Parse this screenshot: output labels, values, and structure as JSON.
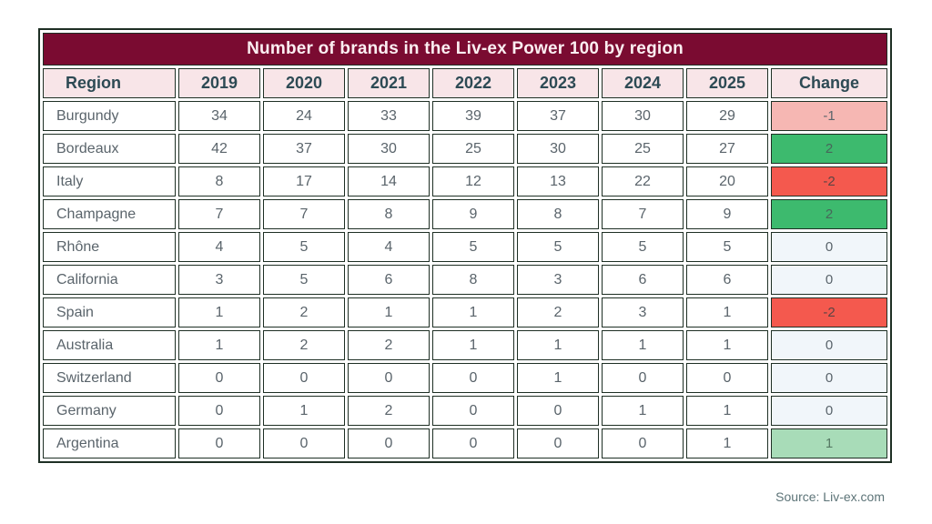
{
  "title": "Number of brands in the Liv-ex Power 100 by region",
  "source_note": "Source: Liv-ex.com",
  "colors": {
    "title_bg": "#7a0b31",
    "title_text": "#fbeef1",
    "header_bg": "#f8e5e8",
    "header_text": "#2d4a54",
    "border_color": "#1e2f24",
    "body_text": "#5a646b",
    "neg_light": "#f6b7b3",
    "pos_strong": "#3dba6e",
    "neg_strong": "#f4594e",
    "zero_bg": "#f1f6fa",
    "pos_light": "#a8dcb8",
    "source_text": "#5d7478"
  },
  "chart_data": {
    "type": "table",
    "title": "Number of brands in the Liv-ex Power 100 by region",
    "columns": [
      "Region",
      "2019",
      "2020",
      "2021",
      "2022",
      "2023",
      "2024",
      "2025",
      "Change"
    ],
    "categories": [
      "2019",
      "2020",
      "2021",
      "2022",
      "2023",
      "2024",
      "2025"
    ],
    "rows": [
      {
        "region": "Burgundy",
        "values": [
          34,
          24,
          33,
          39,
          37,
          30,
          29
        ],
        "change": "-1",
        "change_style": "neg-light"
      },
      {
        "region": "Bordeaux",
        "values": [
          42,
          37,
          30,
          25,
          30,
          25,
          27
        ],
        "change": "2",
        "change_style": "pos-strong"
      },
      {
        "region": "Italy",
        "values": [
          8,
          17,
          14,
          12,
          13,
          22,
          20
        ],
        "change": "-2",
        "change_style": "neg-strong"
      },
      {
        "region": "Champagne",
        "values": [
          7,
          7,
          8,
          9,
          8,
          7,
          9
        ],
        "change": "2",
        "change_style": "pos-strong"
      },
      {
        "region": "Rhône",
        "values": [
          4,
          5,
          4,
          5,
          5,
          5,
          5
        ],
        "change": "0",
        "change_style": "zero"
      },
      {
        "region": "California",
        "values": [
          3,
          5,
          6,
          8,
          3,
          6,
          6
        ],
        "change": "0",
        "change_style": "zero"
      },
      {
        "region": "Spain",
        "values": [
          1,
          2,
          1,
          1,
          2,
          3,
          1
        ],
        "change": "-2",
        "change_style": "neg-strong"
      },
      {
        "region": "Australia",
        "values": [
          1,
          2,
          2,
          1,
          1,
          1,
          1
        ],
        "change": "0",
        "change_style": "zero"
      },
      {
        "region": "Switzerland",
        "values": [
          0,
          0,
          0,
          0,
          1,
          0,
          0
        ],
        "change": "0",
        "change_style": "zero"
      },
      {
        "region": "Germany",
        "values": [
          0,
          1,
          2,
          0,
          0,
          1,
          1
        ],
        "change": "0",
        "change_style": "zero"
      },
      {
        "region": "Argentina",
        "values": [
          0,
          0,
          0,
          0,
          0,
          0,
          1
        ],
        "change": "1",
        "change_style": "pos-light"
      }
    ]
  }
}
